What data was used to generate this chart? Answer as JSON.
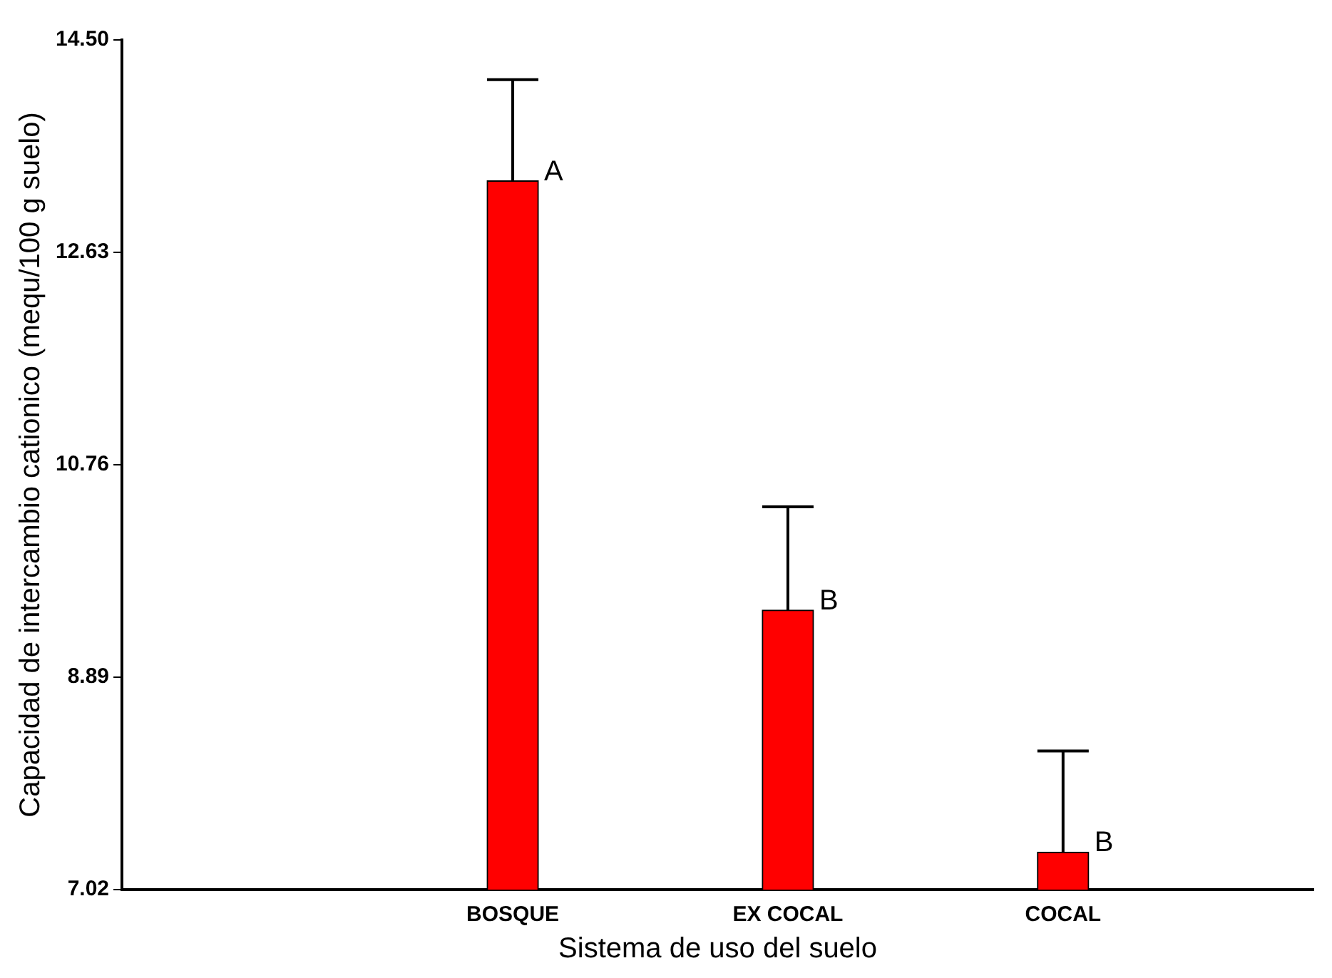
{
  "chart_data": {
    "type": "bar",
    "xlabel": "Sistema de uso del suelo",
    "ylabel": "Capacidad de intercambio cationico (mequ/100 g suelo)",
    "categories": [
      "BOSQUE",
      "EX COCAL",
      "COCAL"
    ],
    "values": [
      13.26,
      9.48,
      7.35
    ],
    "errors": [
      [
        13.26,
        14.15
      ],
      [
        9.48,
        10.39
      ],
      [
        7.35,
        8.24
      ]
    ],
    "color": "#ff0000",
    "ylim": [
      7.02,
      14.5
    ],
    "yticks": [
      7.02,
      8.89,
      10.76,
      12.63,
      {
        "value": 14.5,
        "label": "14.50"
      }
    ],
    "annotations": [
      "A",
      "B",
      "B"
    ],
    "grid": false,
    "legend": false
  }
}
